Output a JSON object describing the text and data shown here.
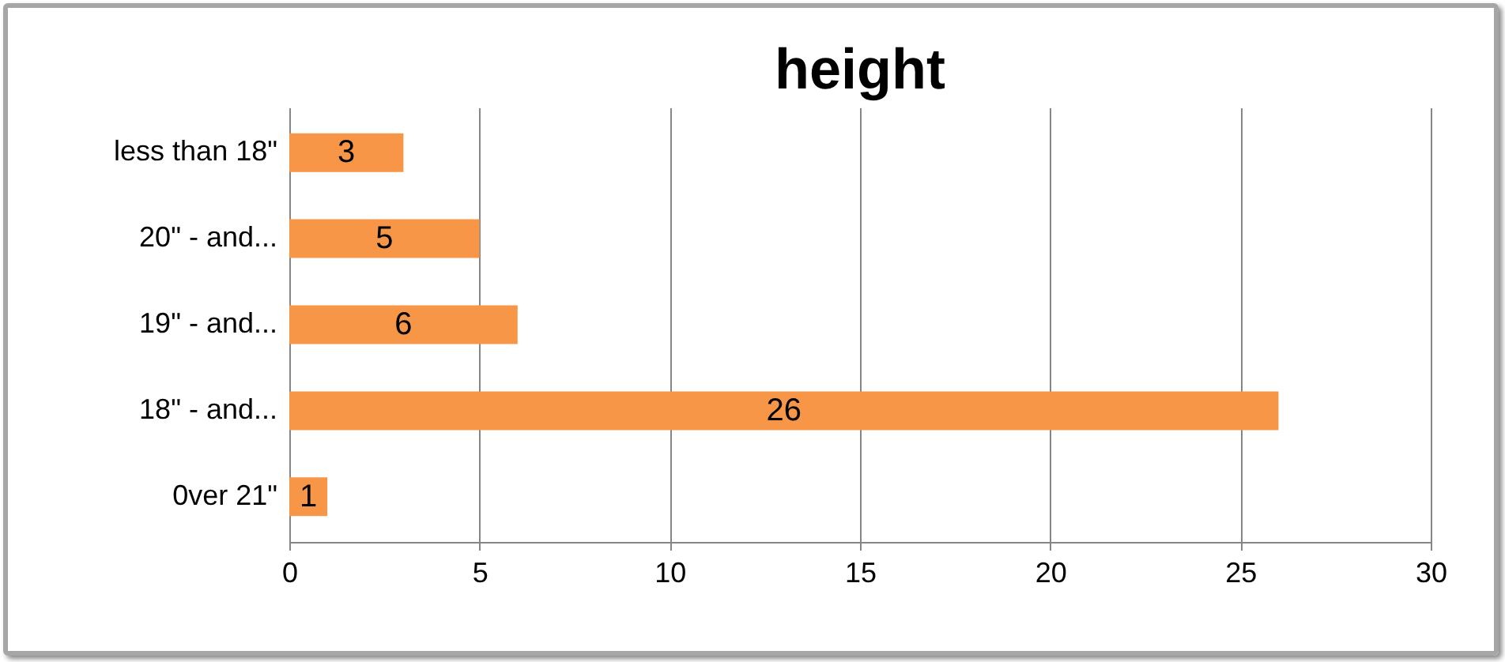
{
  "chart_data": {
    "type": "bar",
    "orientation": "horizontal",
    "title": "height",
    "categories": [
      "less than 18\"",
      "20\" - and...",
      "19\" - and...",
      "18\" - and...",
      "0ver 21\""
    ],
    "values": [
      3,
      5,
      6,
      26,
      1
    ],
    "color": "#f79646",
    "xlim": [
      0,
      30
    ],
    "xticks": [
      0,
      5,
      10,
      15,
      20,
      25,
      30
    ],
    "grid": "x",
    "data_labels": true
  }
}
